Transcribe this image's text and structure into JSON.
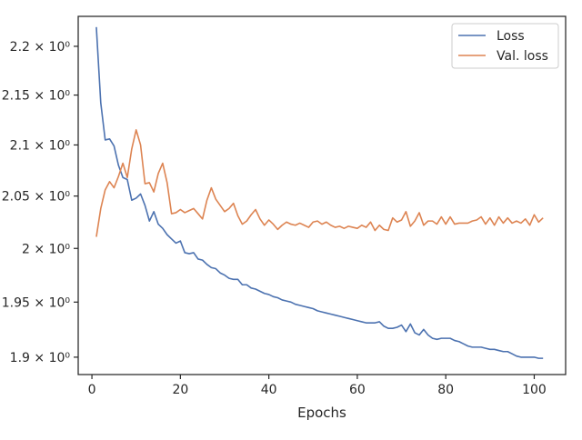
{
  "chart_data": {
    "type": "line",
    "title": "",
    "xlabel": "Epochs",
    "ylabel": "",
    "y_scale": "log",
    "xlim": [
      -3.1,
      107.1
    ],
    "ylim": [
      1.8845,
      2.2313
    ],
    "grid": false,
    "legend_position": "top-right",
    "x_ticks": [
      {
        "value": 0,
        "label": "0"
      },
      {
        "value": 20,
        "label": "20"
      },
      {
        "value": 40,
        "label": "40"
      },
      {
        "value": 60,
        "label": "60"
      },
      {
        "value": 80,
        "label": "80"
      },
      {
        "value": 100,
        "label": "100"
      }
    ],
    "y_ticks": [
      {
        "value": 1.9,
        "label": "1.9 × 10⁰"
      },
      {
        "value": 1.95,
        "label": "1.95 × 10⁰"
      },
      {
        "value": 2.0,
        "label": "2 × 10⁰"
      },
      {
        "value": 2.05,
        "label": "2.05 × 10⁰"
      },
      {
        "value": 2.1,
        "label": "2.1 × 10⁰"
      },
      {
        "value": 2.15,
        "label": "2.15 × 10⁰"
      },
      {
        "value": 2.2,
        "label": "2.2 × 10⁰"
      }
    ],
    "series": [
      {
        "name": "Loss",
        "color": "#4c72b0",
        "x_start": 1,
        "x_step": 1,
        "values": [
          2.22,
          2.142,
          2.105,
          2.106,
          2.099,
          2.08,
          2.068,
          2.066,
          2.046,
          2.048,
          2.052,
          2.041,
          2.026,
          2.035,
          2.023,
          2.019,
          2.013,
          2.009,
          2.005,
          2.007,
          1.996,
          1.995,
          1.996,
          1.99,
          1.989,
          1.985,
          1.982,
          1.981,
          1.977,
          1.975,
          1.972,
          1.971,
          1.971,
          1.966,
          1.966,
          1.963,
          1.962,
          1.96,
          1.958,
          1.957,
          1.955,
          1.954,
          1.952,
          1.951,
          1.95,
          1.948,
          1.947,
          1.946,
          1.945,
          1.944,
          1.942,
          1.941,
          1.94,
          1.939,
          1.938,
          1.937,
          1.936,
          1.935,
          1.934,
          1.933,
          1.932,
          1.931,
          1.931,
          1.931,
          1.932,
          1.928,
          1.926,
          1.926,
          1.927,
          1.929,
          1.923,
          1.93,
          1.922,
          1.92,
          1.925,
          1.92,
          1.917,
          1.916,
          1.917,
          1.917,
          1.917,
          1.915,
          1.914,
          1.912,
          1.91,
          1.909,
          1.909,
          1.909,
          1.908,
          1.907,
          1.907,
          1.906,
          1.905,
          1.905,
          1.903,
          1.901,
          1.9,
          1.9,
          1.9,
          1.9,
          1.899,
          1.899
        ]
      },
      {
        "name": "Val. loss",
        "color": "#dd8452",
        "x_start": 1,
        "x_step": 1,
        "values": [
          2.011,
          2.038,
          2.056,
          2.064,
          2.058,
          2.069,
          2.082,
          2.068,
          2.096,
          2.115,
          2.1,
          2.062,
          2.063,
          2.054,
          2.072,
          2.082,
          2.063,
          2.033,
          2.034,
          2.037,
          2.034,
          2.036,
          2.038,
          2.033,
          2.028,
          2.046,
          2.058,
          2.047,
          2.041,
          2.035,
          2.038,
          2.043,
          2.031,
          2.023,
          2.026,
          2.032,
          2.037,
          2.028,
          2.022,
          2.027,
          2.023,
          2.018,
          2.022,
          2.025,
          2.023,
          2.022,
          2.024,
          2.022,
          2.02,
          2.025,
          2.026,
          2.023,
          2.025,
          2.022,
          2.02,
          2.021,
          2.019,
          2.021,
          2.02,
          2.019,
          2.022,
          2.02,
          2.025,
          2.017,
          2.022,
          2.018,
          2.017,
          2.029,
          2.025,
          2.027,
          2.035,
          2.021,
          2.026,
          2.034,
          2.022,
          2.026,
          2.026,
          2.023,
          2.03,
          2.023,
          2.03,
          2.023,
          2.024,
          2.024,
          2.024,
          2.026,
          2.027,
          2.03,
          2.023,
          2.029,
          2.022,
          2.03,
          2.024,
          2.029,
          2.024,
          2.026,
          2.024,
          2.028,
          2.022,
          2.032,
          2.025,
          2.029
        ]
      }
    ]
  }
}
